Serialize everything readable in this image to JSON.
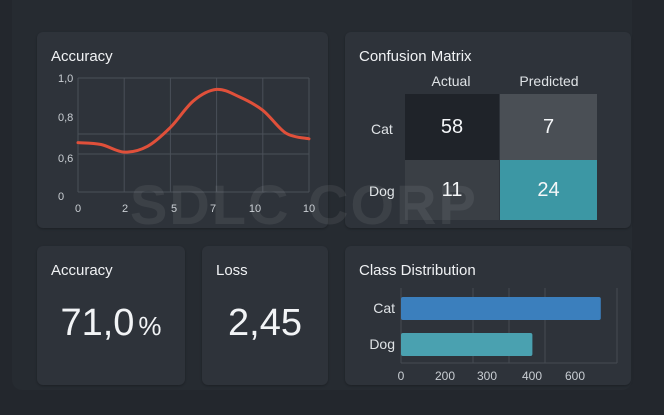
{
  "colors": {
    "line": "#e0503a",
    "bar_cat": "#3b7fbd",
    "bar_dog": "#4aa1b0",
    "cm_dark": "#1f2329",
    "cm_mid": "#4a4f55",
    "cm_accent": "#3c97a4"
  },
  "accuracy_chart": {
    "title": "Accuracy",
    "chart_data": {
      "type": "line",
      "x": [
        0,
        1,
        2,
        3,
        4,
        5,
        6,
        7,
        8,
        9,
        10
      ],
      "y": [
        0.66,
        0.65,
        0.61,
        0.64,
        0.74,
        0.88,
        0.94,
        0.9,
        0.83,
        0.71,
        0.68
      ],
      "y_tick_labels": [
        "1,0",
        "0,8",
        "0,6",
        "0"
      ],
      "x_tick_labels": [
        "0",
        "2",
        "5",
        "7",
        "10",
        "10"
      ],
      "grid": true
    }
  },
  "confusion": {
    "title": "Confusion Matrix",
    "col_headers": [
      "Actual",
      "Predicted"
    ],
    "row_labels": [
      "Cat",
      "Dog"
    ],
    "cells": [
      [
        "58",
        "7"
      ],
      [
        "11",
        "24"
      ]
    ]
  },
  "accuracy_kpi": {
    "title": "Accuracy",
    "value": "71,0",
    "unit": "%"
  },
  "loss_kpi": {
    "title": "Loss",
    "value": "2,45"
  },
  "class_dist": {
    "title": "Class Distribution",
    "chart_data": {
      "type": "bar",
      "orientation": "horizontal",
      "categories": [
        "Cat",
        "Dog"
      ],
      "values": [
        555,
        365
      ],
      "xlim": [
        0,
        600
      ],
      "x_tick_labels": [
        "0",
        "200",
        "300",
        "400",
        "600"
      ],
      "grid": true
    }
  },
  "watermark": "SDLC CORP"
}
